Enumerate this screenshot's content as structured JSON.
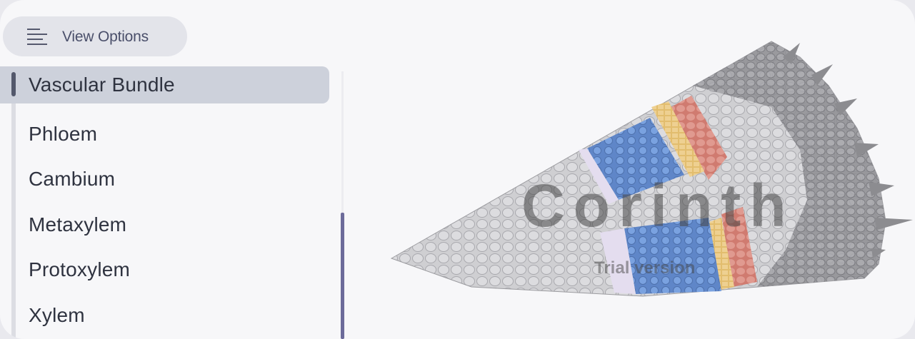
{
  "toolbar": {
    "view_options_label": "View Options",
    "view_options_icon": "list-lines-icon"
  },
  "layers": {
    "selected": "Vascular Bundle",
    "items": [
      {
        "label": "Vascular Bundle",
        "active": true
      },
      {
        "label": "Phloem",
        "active": false
      },
      {
        "label": "Cambium",
        "active": false
      },
      {
        "label": "Metaxylem",
        "active": false
      },
      {
        "label": "Protoxylem",
        "active": false
      },
      {
        "label": "Xylem",
        "active": false
      }
    ]
  },
  "model_view": {
    "watermark": "Corinth",
    "watermark_sub": "Trial version",
    "colors": {
      "cortex": "#c9c9cc",
      "outer": "#9a9a9e",
      "phloem_blue": "#6f96d6",
      "cambium_yellow": "#e5c47a",
      "red": "#d98a7f",
      "dark": "#7e7e82"
    }
  },
  "colors": {
    "accent": "#6c6b9a",
    "active_bg": "#cdd1db",
    "pill_bg": "#e3e4ea"
  }
}
